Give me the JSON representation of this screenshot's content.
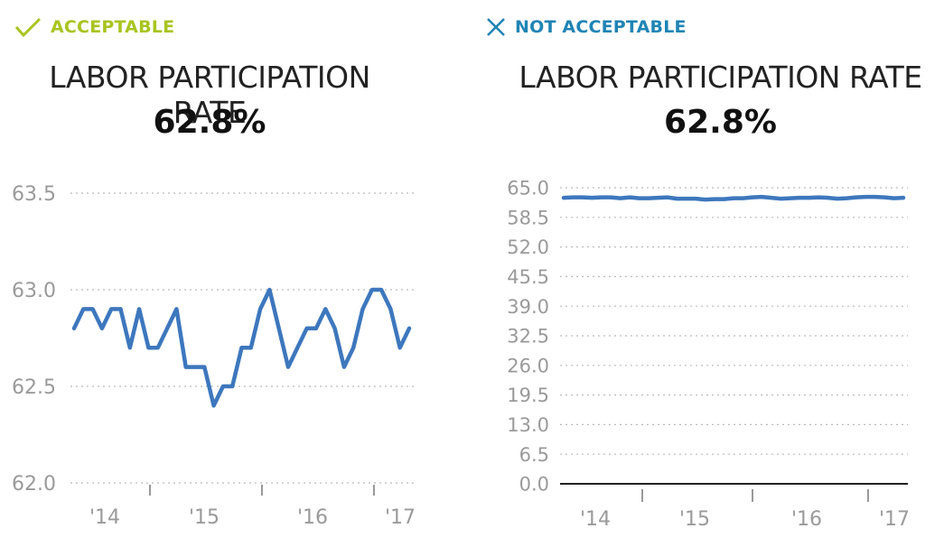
{
  "panels": [
    {
      "verdict_label": "ACCEPTABLE",
      "verdict_icon": "check-icon",
      "verdict_color": "#a8c41f",
      "title": "LABOR PARTICIPATION RATE",
      "value": "62.8%"
    },
    {
      "verdict_label": "NOT ACCEPTABLE",
      "verdict_icon": "close-icon",
      "verdict_color": "#1f84b5",
      "title": "LABOR PARTICIPATION RATE",
      "value": "62.8%"
    }
  ],
  "chart_data": [
    {
      "type": "line",
      "title": "LABOR PARTICIPATION RATE",
      "subtitle": "62.8%",
      "xlabel": "",
      "ylabel": "",
      "x_ticks": [
        "'14",
        "'15",
        "'16",
        "'17"
      ],
      "y_ticks": [
        "62.0",
        "62.5",
        "63.0",
        "63.5"
      ],
      "ylim": [
        62.0,
        63.5
      ],
      "grid": true,
      "line_color": "#3d77bd",
      "series": [
        {
          "values": [
            62.8,
            62.9,
            62.9,
            62.8,
            62.9,
            62.9,
            62.7,
            62.9,
            62.7,
            62.7,
            62.8,
            62.9,
            62.6,
            62.6,
            62.6,
            62.4,
            62.5,
            62.5,
            62.7,
            62.7,
            62.9,
            63.0,
            62.8,
            62.6,
            62.7,
            62.8,
            62.8,
            62.9,
            62.8,
            62.6,
            62.7,
            62.9,
            63.0,
            63.0,
            62.9,
            62.7,
            62.8
          ]
        }
      ]
    },
    {
      "type": "line",
      "title": "LABOR PARTICIPATION RATE",
      "subtitle": "62.8%",
      "xlabel": "",
      "ylabel": "",
      "x_ticks": [
        "'14",
        "'15",
        "'16",
        "'17"
      ],
      "y_ticks": [
        "0.0",
        "6.5",
        "13.0",
        "19.5",
        "26.0",
        "32.5",
        "39.0",
        "45.5",
        "52.0",
        "58.5",
        "65.0"
      ],
      "ylim": [
        0.0,
        65.0
      ],
      "grid": true,
      "line_color": "#3d77bd",
      "series": [
        {
          "values": [
            62.8,
            62.9,
            62.9,
            62.8,
            62.9,
            62.9,
            62.7,
            62.9,
            62.7,
            62.7,
            62.8,
            62.9,
            62.6,
            62.6,
            62.6,
            62.4,
            62.5,
            62.5,
            62.7,
            62.7,
            62.9,
            63.0,
            62.8,
            62.6,
            62.7,
            62.8,
            62.8,
            62.9,
            62.8,
            62.6,
            62.7,
            62.9,
            63.0,
            63.0,
            62.9,
            62.7,
            62.8
          ]
        }
      ]
    }
  ]
}
